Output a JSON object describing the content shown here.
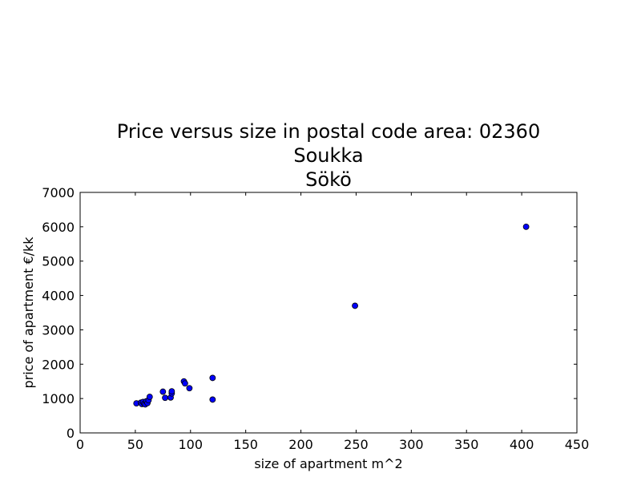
{
  "chart_data": {
    "type": "scatter",
    "title": [
      "Price versus size in postal code area: 02360",
      "Soukka",
      "Sökö"
    ],
    "xlabel": "size of apartment m^2",
    "ylabel": "price of apartment €/kk",
    "xlim": [
      0,
      450
    ],
    "ylim": [
      0,
      7000
    ],
    "xticks": [
      0,
      50,
      100,
      150,
      200,
      250,
      300,
      350,
      400,
      450
    ],
    "yticks": [
      0,
      1000,
      2000,
      3000,
      4000,
      5000,
      6000,
      7000
    ],
    "grid": false,
    "legend": "none",
    "colors": {
      "marker": "#0000ff",
      "marker_edge": "#000000",
      "axes": "#000000"
    },
    "points": [
      {
        "x": 51,
        "y": 860
      },
      {
        "x": 55,
        "y": 880
      },
      {
        "x": 56,
        "y": 840
      },
      {
        "x": 57,
        "y": 900
      },
      {
        "x": 58,
        "y": 850
      },
      {
        "x": 59,
        "y": 830
      },
      {
        "x": 60,
        "y": 920
      },
      {
        "x": 61,
        "y": 870
      },
      {
        "x": 62,
        "y": 950
      },
      {
        "x": 63,
        "y": 1050
      },
      {
        "x": 75,
        "y": 1200
      },
      {
        "x": 77,
        "y": 1020
      },
      {
        "x": 82,
        "y": 1030
      },
      {
        "x": 83,
        "y": 1150
      },
      {
        "x": 83,
        "y": 1210
      },
      {
        "x": 94,
        "y": 1500
      },
      {
        "x": 95,
        "y": 1440
      },
      {
        "x": 99,
        "y": 1300
      },
      {
        "x": 120,
        "y": 1600
      },
      {
        "x": 120,
        "y": 970
      },
      {
        "x": 249,
        "y": 3700
      },
      {
        "x": 404,
        "y": 6000
      }
    ]
  }
}
